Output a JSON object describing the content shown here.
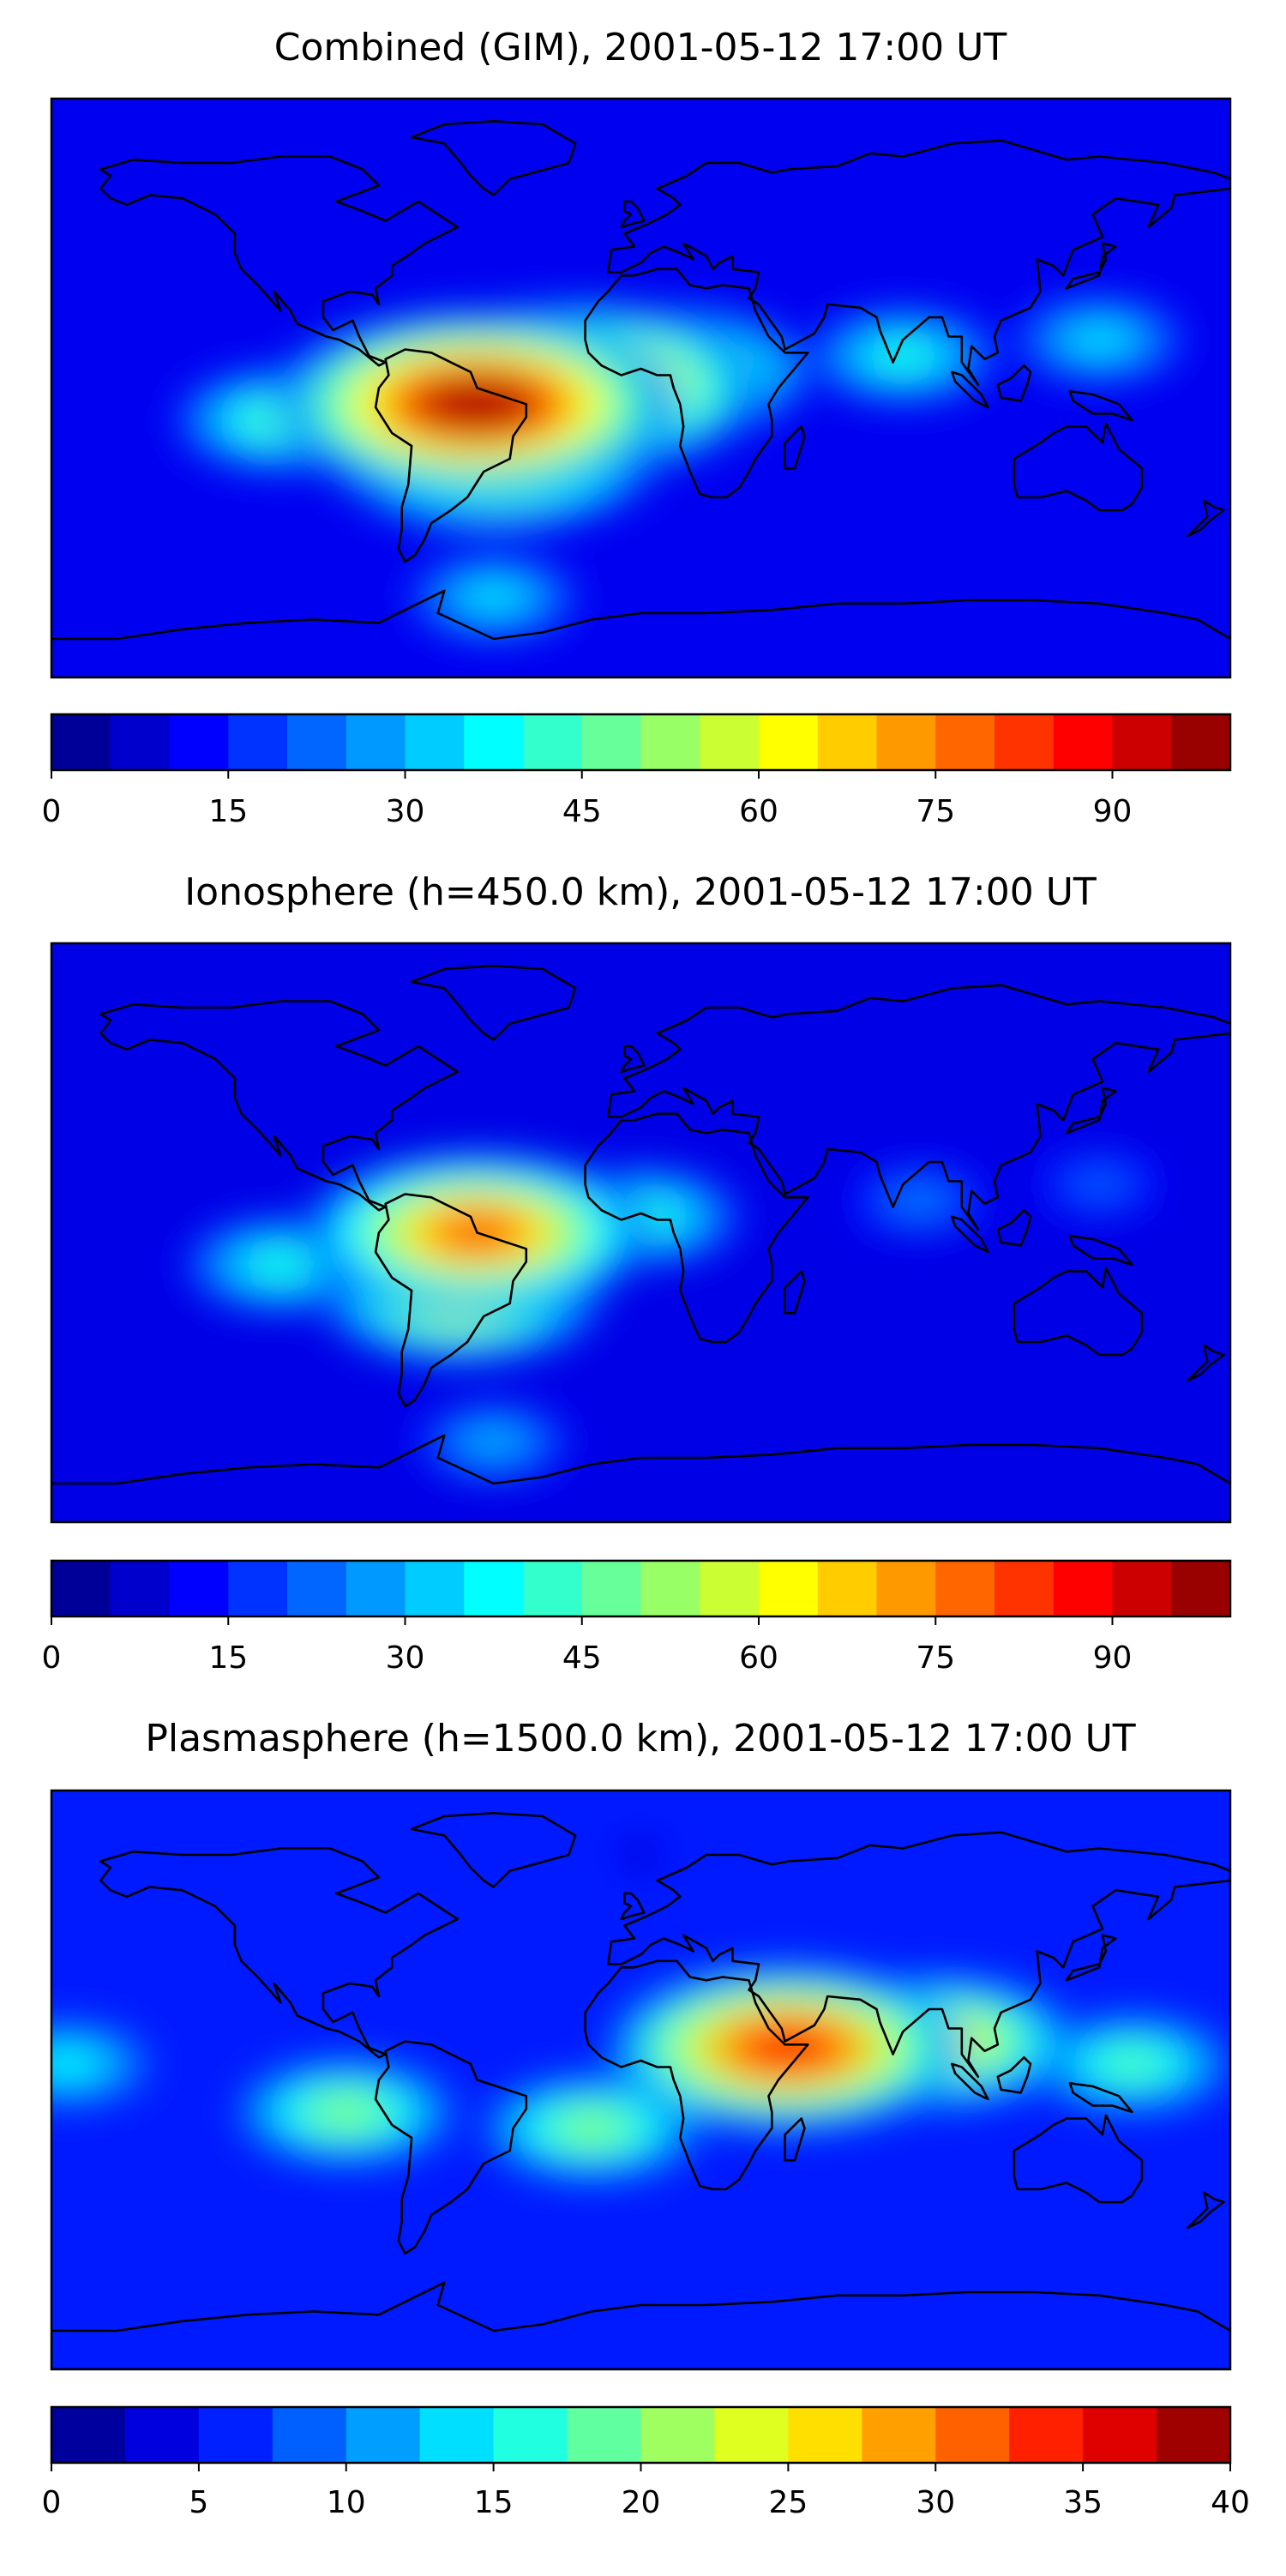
{
  "chart_data": [
    {
      "type": "heatmap",
      "title": "Combined (GIM), 2001-05-12 17:00 UT",
      "projection": "equirectangular",
      "lon_range": [
        -180,
        180
      ],
      "lat_range": [
        -90,
        90
      ],
      "colormap": "jet",
      "color_levels": [
        0,
        5,
        10,
        15,
        20,
        25,
        30,
        35,
        40,
        45,
        50,
        55,
        60,
        65,
        70,
        75,
        80,
        85,
        90,
        95,
        100
      ],
      "colorbar_ticks": [
        0,
        15,
        30,
        45,
        60,
        75,
        90
      ],
      "background_value": 11,
      "features": [
        {
          "name": "Equatorial anomaly over South America",
          "lon": -50,
          "lat": -5,
          "value": 95
        },
        {
          "name": "Tropical Atlantic crest",
          "lon": -20,
          "lat": 0,
          "value": 85
        },
        {
          "name": "Southern crest over South America",
          "lon": -45,
          "lat": -20,
          "value": 75
        },
        {
          "name": "Western Africa",
          "lon": 10,
          "lat": 5,
          "value": 60
        },
        {
          "name": "Eastern Pacific",
          "lon": -110,
          "lat": -10,
          "value": 45
        },
        {
          "name": "South Atlantic polar patch",
          "lon": -45,
          "lat": -65,
          "value": 35
        },
        {
          "name": "Indian Ocean / Asia",
          "lon": 80,
          "lat": 10,
          "value": 40
        },
        {
          "name": "Western Pacific",
          "lon": 140,
          "lat": 15,
          "value": 35
        }
      ]
    },
    {
      "type": "heatmap",
      "title": "Ionosphere  (h=450.0 km), 2001-05-12 17:00 UT",
      "projection": "equirectangular",
      "lon_range": [
        -180,
        180
      ],
      "lat_range": [
        -90,
        90
      ],
      "colormap": "jet",
      "color_levels": [
        0,
        5,
        10,
        15,
        20,
        25,
        30,
        35,
        40,
        45,
        50,
        55,
        60,
        65,
        70,
        75,
        80,
        85,
        90,
        95,
        100
      ],
      "colorbar_ticks": [
        0,
        15,
        30,
        45,
        60,
        75,
        90
      ],
      "background_value": 10,
      "features": [
        {
          "name": "Equatorial anomaly over South America",
          "lon": -50,
          "lat": 0,
          "value": 78
        },
        {
          "name": "Southern crest over South America",
          "lon": -55,
          "lat": -20,
          "value": 62
        },
        {
          "name": "Western Africa",
          "lon": 0,
          "lat": 5,
          "value": 42
        },
        {
          "name": "Eastern Pacific",
          "lon": -110,
          "lat": -10,
          "value": 40
        },
        {
          "name": "South Atlantic polar patch",
          "lon": -45,
          "lat": -65,
          "value": 30
        },
        {
          "name": "Indian Ocean / Asia",
          "lon": 85,
          "lat": 10,
          "value": 25
        },
        {
          "name": "Western Pacific",
          "lon": 140,
          "lat": 15,
          "value": 22
        }
      ]
    },
    {
      "type": "heatmap",
      "title": "Plasmasphere (h=1500.0 km), 2001-05-12 17:00 UT",
      "projection": "equirectangular",
      "lon_range": [
        -180,
        180
      ],
      "lat_range": [
        -90,
        90
      ],
      "colormap": "jet",
      "color_levels": [
        0,
        2.5,
        5,
        7.5,
        10,
        12.5,
        15,
        17.5,
        20,
        22.5,
        25,
        27.5,
        30,
        32.5,
        35,
        37.5,
        40
      ],
      "colorbar_ticks": [
        0,
        5,
        10,
        15,
        20,
        25,
        30,
        35,
        40
      ],
      "background_value": 6,
      "features": [
        {
          "name": "Horn of Africa maximum",
          "lon": 45,
          "lat": 10,
          "value": 34
        },
        {
          "name": "India / Southeast Asia",
          "lon": 90,
          "lat": 12,
          "value": 26
        },
        {
          "name": "Western Pacific",
          "lon": 150,
          "lat": 5,
          "value": 18
        },
        {
          "name": "Eastern Pacific",
          "lon": -175,
          "lat": 5,
          "value": 15
        },
        {
          "name": "Tropical South America",
          "lon": -90,
          "lat": -10,
          "value": 20
        },
        {
          "name": "South Atlantic",
          "lon": -15,
          "lat": -15,
          "value": 20
        },
        {
          "name": "Northern Atlantic low",
          "lon": 0,
          "lat": 70,
          "value": 2
        }
      ]
    }
  ]
}
